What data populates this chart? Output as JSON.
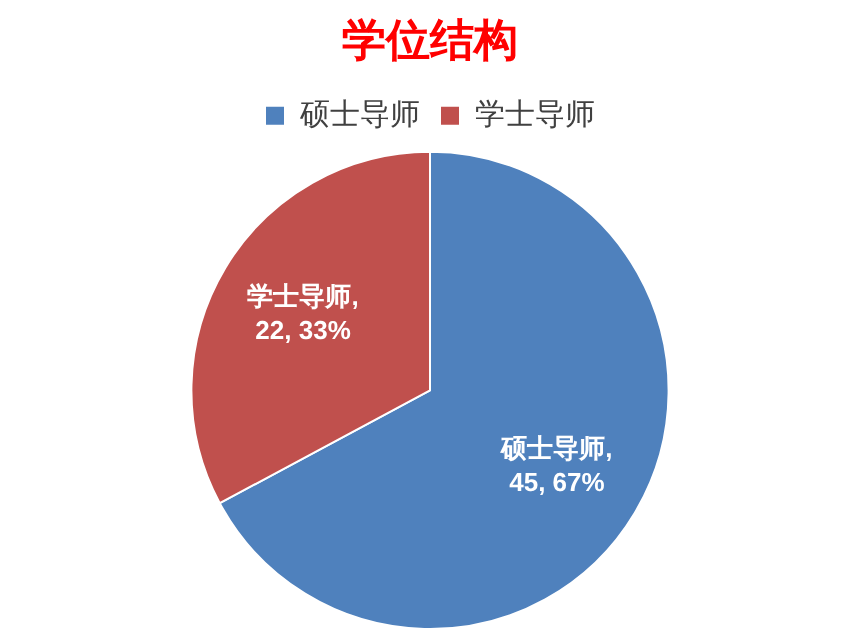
{
  "chart_data": {
    "type": "pie",
    "title": "学位结构",
    "categories": [
      "硕士导师",
      "学士导师"
    ],
    "values": [
      45,
      22
    ],
    "colors": [
      "#4f81bd",
      "#c0504d"
    ],
    "value_labels": [
      "硕士导师, 45, 67%",
      "学士导师, 22, 33%"
    ],
    "legend": "top"
  }
}
